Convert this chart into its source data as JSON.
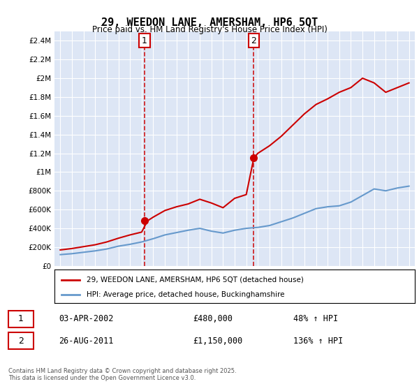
{
  "title": "29, WEEDON LANE, AMERSHAM, HP6 5QT",
  "subtitle": "Price paid vs. HM Land Registry's House Price Index (HPI)",
  "background_color": "#e8eef8",
  "plot_bg_color": "#dde6f5",
  "ylim": [
    0,
    2500000
  ],
  "yticks": [
    0,
    200000,
    400000,
    600000,
    800000,
    1000000,
    1200000,
    1400000,
    1600000,
    1800000,
    2000000,
    2200000,
    2400000
  ],
  "ytick_labels": [
    "£0",
    "£200K",
    "£400K",
    "£600K",
    "£800K",
    "£1M",
    "£1.2M",
    "£1.4M",
    "£1.6M",
    "£1.8M",
    "£2M",
    "£2.2M",
    "£2.4M"
  ],
  "sale1_date": 2002.25,
  "sale1_price": 480000,
  "sale1_label": "1",
  "sale2_date": 2011.65,
  "sale2_price": 1150000,
  "sale2_label": "2",
  "sale1_info": "03-APR-2002",
  "sale1_amount": "£480,000",
  "sale1_hpi": "48% ↑ HPI",
  "sale2_info": "26-AUG-2011",
  "sale2_amount": "£1,150,000",
  "sale2_hpi": "136% ↑ HPI",
  "legend_line1": "29, WEEDON LANE, AMERSHAM, HP6 5QT (detached house)",
  "legend_line2": "HPI: Average price, detached house, Buckinghamshire",
  "footer": "Contains HM Land Registry data © Crown copyright and database right 2025.\nThis data is licensed under the Open Government Licence v3.0.",
  "line_color": "#cc0000",
  "hpi_color": "#6699cc",
  "marker_color": "#cc0000",
  "vline_color": "#cc0000",
  "hpi_years": [
    1995,
    1996,
    1997,
    1998,
    1999,
    2000,
    2001,
    2002,
    2003,
    2004,
    2005,
    2006,
    2007,
    2008,
    2009,
    2010,
    2011,
    2012,
    2013,
    2014,
    2015,
    2016,
    2017,
    2018,
    2019,
    2020,
    2021,
    2022,
    2023,
    2024,
    2025
  ],
  "hpi_values": [
    120000,
    130000,
    145000,
    160000,
    180000,
    210000,
    230000,
    255000,
    290000,
    330000,
    355000,
    380000,
    400000,
    370000,
    350000,
    380000,
    400000,
    410000,
    430000,
    470000,
    510000,
    560000,
    610000,
    630000,
    640000,
    680000,
    750000,
    820000,
    800000,
    830000,
    850000
  ],
  "property_years": [
    1995,
    1996,
    1997,
    1998,
    1999,
    2000,
    2001,
    2002,
    2002.5,
    2003,
    2004,
    2005,
    2006,
    2007,
    2008,
    2009,
    2010,
    2011,
    2011.65,
    2012,
    2013,
    2014,
    2015,
    2016,
    2017,
    2018,
    2019,
    2020,
    2021,
    2022,
    2023,
    2024,
    2025
  ],
  "property_values": [
    170000,
    185000,
    205000,
    225000,
    255000,
    295000,
    330000,
    360000,
    480000,
    520000,
    590000,
    630000,
    660000,
    710000,
    670000,
    620000,
    720000,
    760000,
    1150000,
    1200000,
    1280000,
    1380000,
    1500000,
    1620000,
    1720000,
    1780000,
    1850000,
    1900000,
    2000000,
    1950000,
    1850000,
    1900000,
    1950000
  ]
}
